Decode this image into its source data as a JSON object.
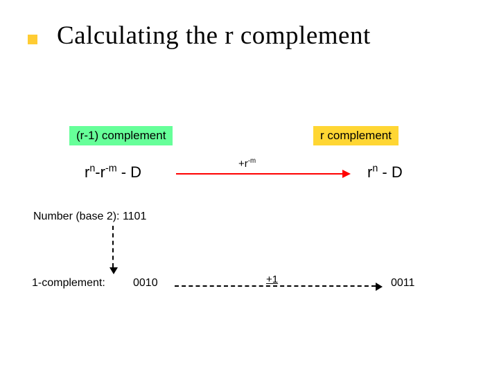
{
  "colors": {
    "bullet": "#ffcc33",
    "label_left_bg": "#66ff99",
    "label_right_bg": "#ffd633",
    "arrow_color": "#ff0000"
  },
  "title": "Calculating the r complement",
  "labels": {
    "left": "(r-1) complement",
    "right": "r complement"
  },
  "arrow_annotation": {
    "prefix": "+r",
    "sup": "-m"
  },
  "example": {
    "number_line": "Number (base 2): 1101",
    "one_comp_label": "1-complement:",
    "one_comp_value": "0010",
    "plus_one": "+1",
    "result": "0011"
  },
  "formula_left": {
    "base1": "r",
    "sup1": "n",
    "mid": "-r",
    "sup2": "-m",
    "tail": " - D"
  },
  "formula_right": {
    "base": "r",
    "sup": "n",
    "tail": " - D"
  }
}
